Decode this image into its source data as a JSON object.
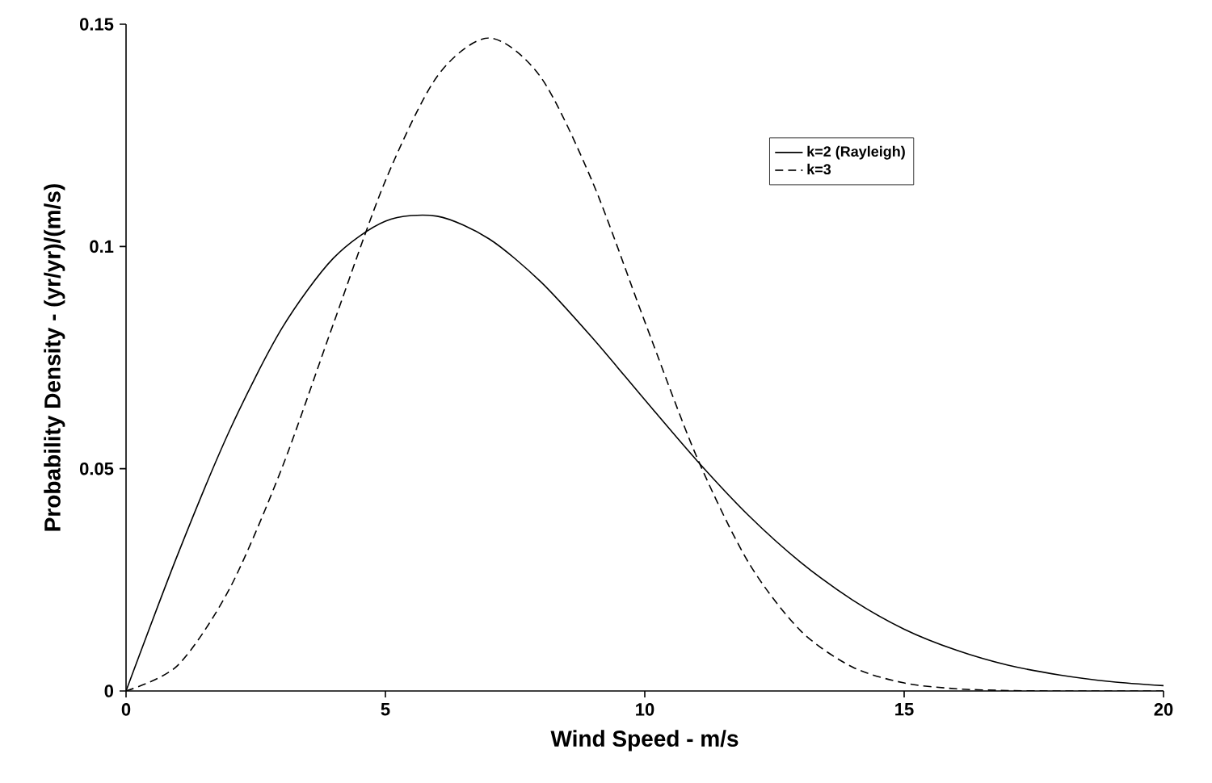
{
  "chart_data": {
    "type": "line",
    "xlabel": "Wind Speed - m/s",
    "ylabel": "Probability Density - (yr/yr)/(m/s)",
    "x": [
      0,
      1,
      2,
      3,
      4,
      5,
      6,
      7,
      8,
      9,
      10,
      11,
      12,
      13,
      14,
      15,
      16,
      17,
      18,
      19,
      20
    ],
    "series": [
      {
        "name": "k=2 (Rayleigh)",
        "color": "#000000",
        "line_style": "solid",
        "values": [
          0,
          0.0308,
          0.0587,
          0.0815,
          0.0974,
          0.1057,
          0.1068,
          0.1017,
          0.092,
          0.0793,
          0.0655,
          0.0519,
          0.0395,
          0.029,
          0.0205,
          0.0139,
          0.0092,
          0.0058,
          0.0036,
          0.0021,
          0.0012
        ]
      },
      {
        "name": "k=3",
        "color": "#000000",
        "line_style": "dashed",
        "values": [
          0,
          0.0058,
          0.0231,
          0.05,
          0.0827,
          0.1148,
          0.1383,
          0.1469,
          0.138,
          0.1143,
          0.0831,
          0.0527,
          0.0289,
          0.0136,
          0.0054,
          0.0018,
          0.0005,
          0.0001,
          0,
          0,
          0
        ]
      }
    ],
    "xlim": [
      0,
      20
    ],
    "ylim": [
      0,
      0.15
    ],
    "xticks": [
      0,
      5,
      10,
      15,
      20
    ],
    "yticks": [
      0,
      0.05,
      0.1,
      0.15
    ],
    "grid": false,
    "legend": "top right",
    "marker": "none"
  }
}
